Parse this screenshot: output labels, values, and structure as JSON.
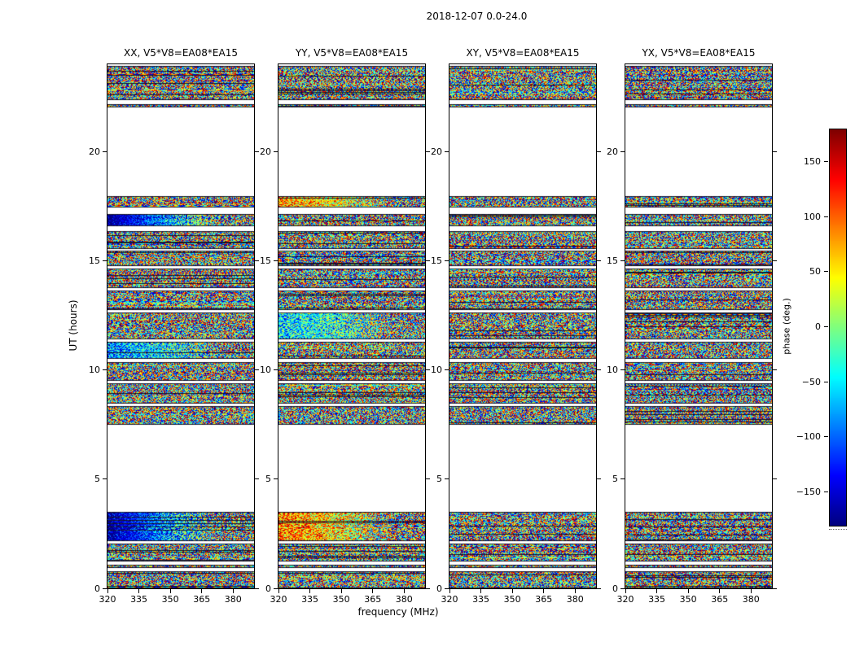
{
  "figure_title": "2018-12-07 0.0-24.0",
  "chart_data": {
    "type": "heatmap",
    "title": "2018-12-07 0.0-24.0",
    "xlabel": "frequency (MHz)",
    "ylabel": "UT (hours)",
    "xlim": [
      320,
      390
    ],
    "ylim": [
      0,
      24
    ],
    "x_ticks": [
      320,
      335,
      350,
      365,
      380
    ],
    "y_ticks": [
      0,
      5,
      10,
      15,
      20
    ],
    "colormap": "jet",
    "value_kind": "phase noise (interferometer baseline cross-correlation)",
    "colorbar": {
      "label": "phase (deg.)",
      "tick_labels": [
        "150",
        "100",
        "50",
        "0",
        "−50",
        "−100",
        "−150"
      ],
      "tick_values": [
        150,
        100,
        50,
        0,
        -50,
        -100,
        -150
      ],
      "range": [
        -180,
        180
      ],
      "orientation": "vertical",
      "top_color": "dark red",
      "bottom_color": "dark blue"
    },
    "panels": [
      {
        "key": "XX",
        "title": "XX, V5*V8=EA08*EA15",
        "seed": 101,
        "tints": [
          {
            "band": [
              2.18,
              3.5
            ],
            "bias": -0.27
          },
          {
            "band": [
              16.6,
              17.15
            ],
            "bias": -0.3
          },
          {
            "band": [
              10.5,
              11.3
            ],
            "bias": -0.12
          }
        ]
      },
      {
        "key": "YY",
        "title": "YY, V5*V8=EA08*EA15",
        "seed": 202,
        "tints": [
          {
            "band": [
              2.18,
              3.5
            ],
            "bias": 0.14
          },
          {
            "band": [
              17.45,
              17.95
            ],
            "bias": 0.12
          },
          {
            "band": [
              11.4,
              12.65
            ],
            "bias": -0.08
          }
        ]
      },
      {
        "key": "XY",
        "title": "XY, V5*V8=EA08*EA15",
        "seed": 303,
        "tints": []
      },
      {
        "key": "YX",
        "title": "YX, V5*V8=EA08*EA15",
        "seed": 404,
        "tints": []
      }
    ],
    "time_bands": [
      [
        0.0,
        0.78
      ],
      [
        0.92,
        1.08
      ],
      [
        1.22,
        2.05
      ],
      [
        2.18,
        3.5
      ],
      [
        7.5,
        8.35
      ],
      [
        8.45,
        9.4
      ],
      [
        9.5,
        10.35
      ],
      [
        10.5,
        11.3
      ],
      [
        11.4,
        12.65
      ],
      [
        12.75,
        13.65
      ],
      [
        13.75,
        14.65
      ],
      [
        14.75,
        15.45
      ],
      [
        15.55,
        16.35
      ],
      [
        16.6,
        17.15
      ],
      [
        17.45,
        17.95
      ],
      [
        22.02,
        22.18
      ],
      [
        22.35,
        23.92
      ]
    ],
    "grid": false,
    "legend": "none"
  }
}
